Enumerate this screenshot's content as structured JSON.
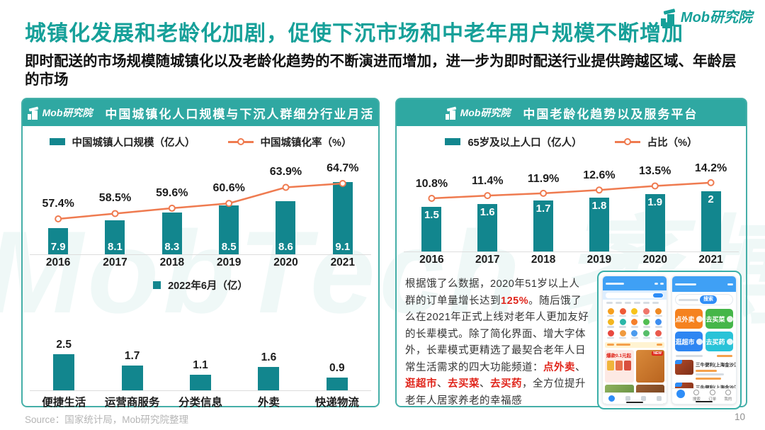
{
  "page": {
    "brand": "Mob研究院",
    "title": "城镇化发展和老龄化加剧，促使下沉市场和中老年用户规模不断增加",
    "subtitle": "即时配送的市场规模随城镇化以及老龄化趋势的不断演进而增加，进一步为即时配送行业提供跨越区域、年龄层的市场",
    "source": "Source：国家统计局，Mob研究院整理",
    "page_number": "10",
    "watermark": "MobTech 袤博"
  },
  "colors": {
    "brand_teal": "#16A099",
    "header_teal": "#2FA8A2",
    "bar_teal": "#12868E",
    "line_orange": "#EF7B50",
    "accent_red": "#E0251B"
  },
  "panels": {
    "left": {
      "header": "中国城镇化人口规模与下沉人群细分行业月活"
    },
    "right": {
      "header": "中国老龄化趋势以及服务平台"
    }
  },
  "chart_data": [
    {
      "id": "urbanization",
      "type": "bar",
      "subtype": "bar+line",
      "categories": [
        "2016",
        "2017",
        "2018",
        "2019",
        "2020",
        "2021"
      ],
      "series": [
        {
          "name": "中国城镇人口规模（亿人）",
          "type": "bar",
          "values": [
            7.9,
            8.1,
            8.3,
            8.5,
            8.6,
            9.1
          ]
        },
        {
          "name": "中国城镇化率（%）",
          "type": "line",
          "values": [
            57.4,
            58.5,
            59.6,
            60.6,
            63.9,
            64.7
          ]
        }
      ],
      "legend_position": "top",
      "grid": false,
      "ylim_bar": [
        7,
        9.5
      ],
      "ylim_line": [
        55,
        67
      ]
    },
    {
      "id": "aging",
      "type": "bar",
      "subtype": "bar+line",
      "categories": [
        "2016",
        "2017",
        "2018",
        "2019",
        "2020",
        "2021"
      ],
      "series": [
        {
          "name": "65岁及以上人口（亿人）",
          "type": "bar",
          "values": [
            1.5,
            1.6,
            1.7,
            1.8,
            1.9,
            2.0
          ]
        },
        {
          "name": "占比（%）",
          "type": "line",
          "values": [
            10.8,
            11.4,
            11.9,
            12.6,
            13.5,
            14.2
          ]
        }
      ],
      "legend_position": "top",
      "grid": false,
      "ylim_bar": [
        1.0,
        2.2
      ],
      "ylim_line": [
        10,
        15
      ]
    },
    {
      "id": "mau-2022",
      "type": "bar",
      "title": "2022年6月（亿）",
      "categories": [
        "便捷生活",
        "运营商服务",
        "分类信息",
        "外卖",
        "快递物流"
      ],
      "values": [
        2.5,
        1.7,
        1.1,
        1.6,
        0.9
      ],
      "legend_position": "top",
      "grid": false,
      "ylim": [
        0,
        3
      ]
    }
  ],
  "paragraph": {
    "segments": [
      {
        "t": "根据饿了么数据，2020年51岁以上人群的订单量增长达到",
        "hl": false
      },
      {
        "t": "125%",
        "hl": true
      },
      {
        "t": "。随后饿了么在2021年正式上线对老年人更加友好的长辈模式。除了简化界面、增大字体外，长辈模式更精选了最契合老年人日常生活需求的四大功能频道：",
        "hl": false
      },
      {
        "t": "点外卖",
        "hl": true
      },
      {
        "t": "、",
        "hl": false
      },
      {
        "t": "逛超市",
        "hl": true
      },
      {
        "t": "、",
        "hl": false
      },
      {
        "t": "去买菜",
        "hl": true
      },
      {
        "t": "、",
        "hl": false
      },
      {
        "t": "去买药",
        "hl": true
      },
      {
        "t": "，全方位提升老年人居家养老的幸福感",
        "hl": false
      }
    ]
  },
  "phones": {
    "standard": {
      "promo": "爆款0.1元起",
      "food_tag": "NEW",
      "icon_colors": [
        "#F6A01E",
        "#EE5A35",
        "#F7C31B",
        "#EF766B",
        "#F08A24",
        "#F3B61F",
        "#2BB6A8",
        "#F57F2A",
        "#52BE52",
        "#3E8EF0",
        "#E8483F",
        "#F09A3E",
        "#4C9BEE",
        "#57BE6A",
        "#EA5A4C"
      ]
    },
    "elder": {
      "search_button": "搜索",
      "buttons": [
        {
          "label": "点外卖",
          "color": "#F5821F"
        },
        {
          "label": "去买菜",
          "color": "#45B649"
        },
        {
          "label": "逛超市",
          "color": "#2E86F2"
        },
        {
          "label": "去买药",
          "color": "#29C3D8"
        }
      ],
      "list": [
        "三牛便利(上海金沙江)",
        "三牛便利(上海金沙江)"
      ],
      "call_label": "电话",
      "nav": [
        "搜索",
        "订单",
        "我的"
      ]
    }
  }
}
